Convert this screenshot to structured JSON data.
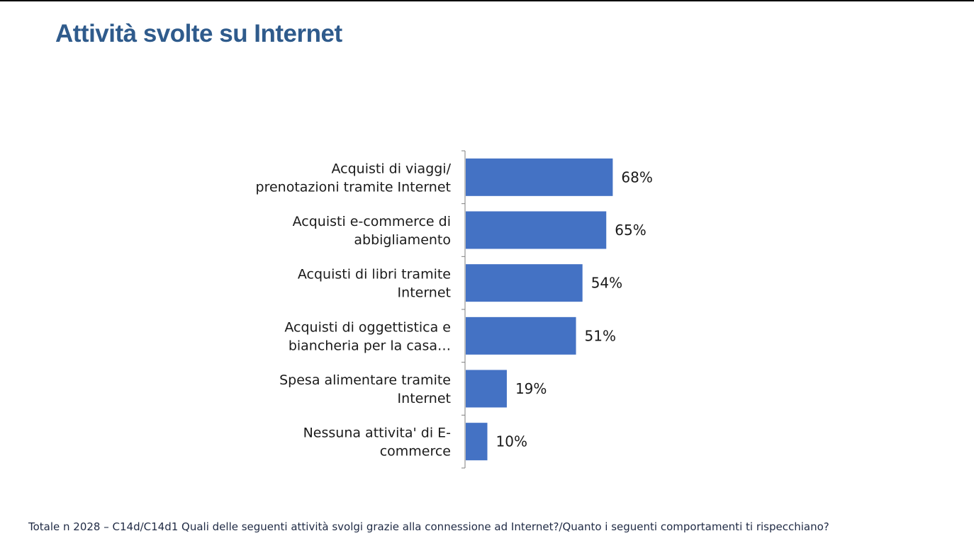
{
  "page": {
    "title": "Attività svolte su Internet",
    "footnote": "Totale n 2028 – C14d/C14d1 Quali delle seguenti attività svolgi grazie alla connessione ad Internet?/Quanto i seguenti comportamenti ti rispecchiano?"
  },
  "colors": {
    "title": "#2f5b8c",
    "bar": "#4472c4",
    "axis": "#7f7f7f"
  },
  "chart_data": {
    "type": "bar",
    "orientation": "horizontal",
    "categories": [
      [
        "Acquisti di viaggi/",
        "prenotazioni tramite Internet"
      ],
      [
        "Acquisti e-commerce di",
        "abbigliamento"
      ],
      [
        "Acquisti di libri tramite",
        "Internet"
      ],
      [
        "Acquisti di oggettistica e",
        "biancheria per la casa…"
      ],
      [
        "Spesa alimentare tramite",
        "Internet"
      ],
      [
        "Nessuna attivita' di E-",
        "commerce"
      ]
    ],
    "values": [
      68,
      65,
      54,
      51,
      19,
      10
    ],
    "data_labels": [
      "68%",
      "65%",
      "54%",
      "51%",
      "19%",
      "10%"
    ],
    "xlim": [
      0,
      100
    ],
    "grid": false,
    "legend": "none"
  }
}
